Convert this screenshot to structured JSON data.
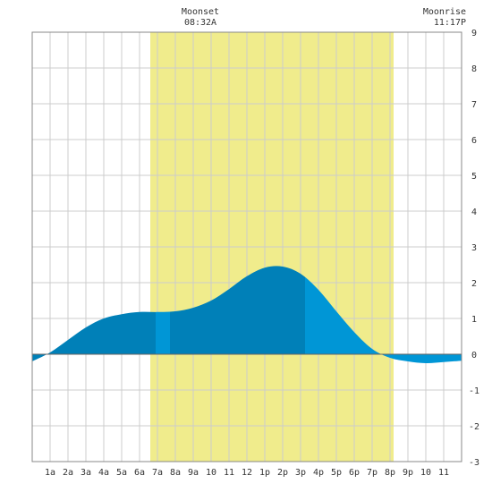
{
  "chart_data": {
    "type": "area",
    "title": "",
    "xlabel": "",
    "ylabel": "",
    "x_range_hours": [
      0,
      24
    ],
    "ylim": [
      -3,
      9
    ],
    "y_ticks": [
      9,
      8,
      7,
      6,
      5,
      4,
      3,
      2,
      1,
      0,
      -1,
      -2,
      -3
    ],
    "x_tick_labels": [
      "1a",
      "2a",
      "3a",
      "4a",
      "5a",
      "6a",
      "7a",
      "8a",
      "9a",
      "10",
      "11",
      "12",
      "1p",
      "2p",
      "3p",
      "4p",
      "5p",
      "6p",
      "7p",
      "8p",
      "9p",
      "10",
      "11"
    ],
    "grid": true,
    "annotations": {
      "moonset": {
        "label": "Moonset",
        "time": "08:32A"
      },
      "moonrise": {
        "label": "Moonrise",
        "time": "11:17P"
      }
    },
    "daylight_hours": [
      6.6,
      20.2
    ],
    "tide_hours": [
      0,
      1,
      2,
      3,
      4,
      5,
      6,
      7,
      8,
      9,
      10,
      11,
      12,
      13,
      14,
      15,
      16,
      17,
      18,
      19,
      20,
      21,
      22,
      23,
      24
    ],
    "tide_heights": [
      -0.2,
      0.05,
      0.4,
      0.75,
      1.0,
      1.12,
      1.18,
      1.18,
      1.2,
      1.3,
      1.5,
      1.82,
      2.18,
      2.42,
      2.45,
      2.25,
      1.8,
      1.2,
      0.62,
      0.15,
      -0.1,
      -0.2,
      -0.25,
      -0.22,
      -0.18
    ],
    "shade_bands": [
      {
        "from": 0,
        "to": 6.9,
        "shade": "dark"
      },
      {
        "from": 6.9,
        "to": 7.7,
        "shade": "light"
      },
      {
        "from": 7.7,
        "to": 15.25,
        "shade": "dark"
      },
      {
        "from": 15.25,
        "to": 24,
        "shade": "light"
      }
    ],
    "colors": {
      "daylight": "#f0ec8c",
      "tide_dark": "#0080b8",
      "tide_light": "#0096d6",
      "grid": "#cccccc",
      "axis": "#888888",
      "zero_line": "#666666"
    }
  }
}
